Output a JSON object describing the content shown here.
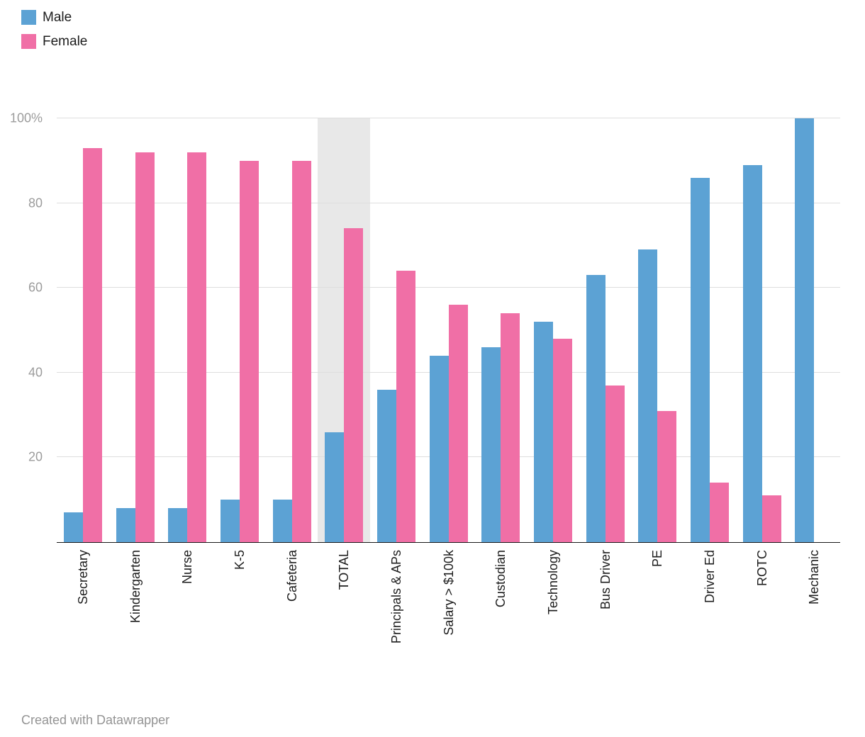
{
  "chart_data": {
    "type": "bar",
    "title": "",
    "categories": [
      "Secretary",
      "Kindergarten",
      "Nurse",
      "K-5",
      "Cafeteria",
      "TOTAL",
      "Principals & APs",
      "Salary > $100k",
      "Custodian",
      "Technology",
      "Bus Driver",
      "PE",
      "Driver Ed",
      "ROTC",
      "Mechanic"
    ],
    "series": [
      {
        "name": "Male",
        "color": "#5CA2D4",
        "values": [
          7,
          8,
          8,
          10,
          10,
          26,
          36,
          44,
          46,
          52,
          63,
          69,
          86,
          89,
          100
        ]
      },
      {
        "name": "Female",
        "color": "#F06FA6",
        "values": [
          93,
          92,
          92,
          90,
          90,
          74,
          64,
          56,
          54,
          48,
          37,
          31,
          14,
          11,
          0
        ]
      }
    ],
    "xlabel": "",
    "ylabel": "",
    "ylim": [
      0,
      100
    ],
    "yticks": [
      {
        "value": 100,
        "label": "100%"
      },
      {
        "value": 80,
        "label": "80"
      },
      {
        "value": 60,
        "label": "60"
      },
      {
        "value": 40,
        "label": "40"
      },
      {
        "value": 20,
        "label": "20"
      }
    ],
    "grid": true,
    "legend_position": "top-left",
    "highlighted_category": "TOTAL",
    "highlight_color": "#E8E8E8"
  },
  "footer": {
    "text": "Created with Datawrapper"
  }
}
